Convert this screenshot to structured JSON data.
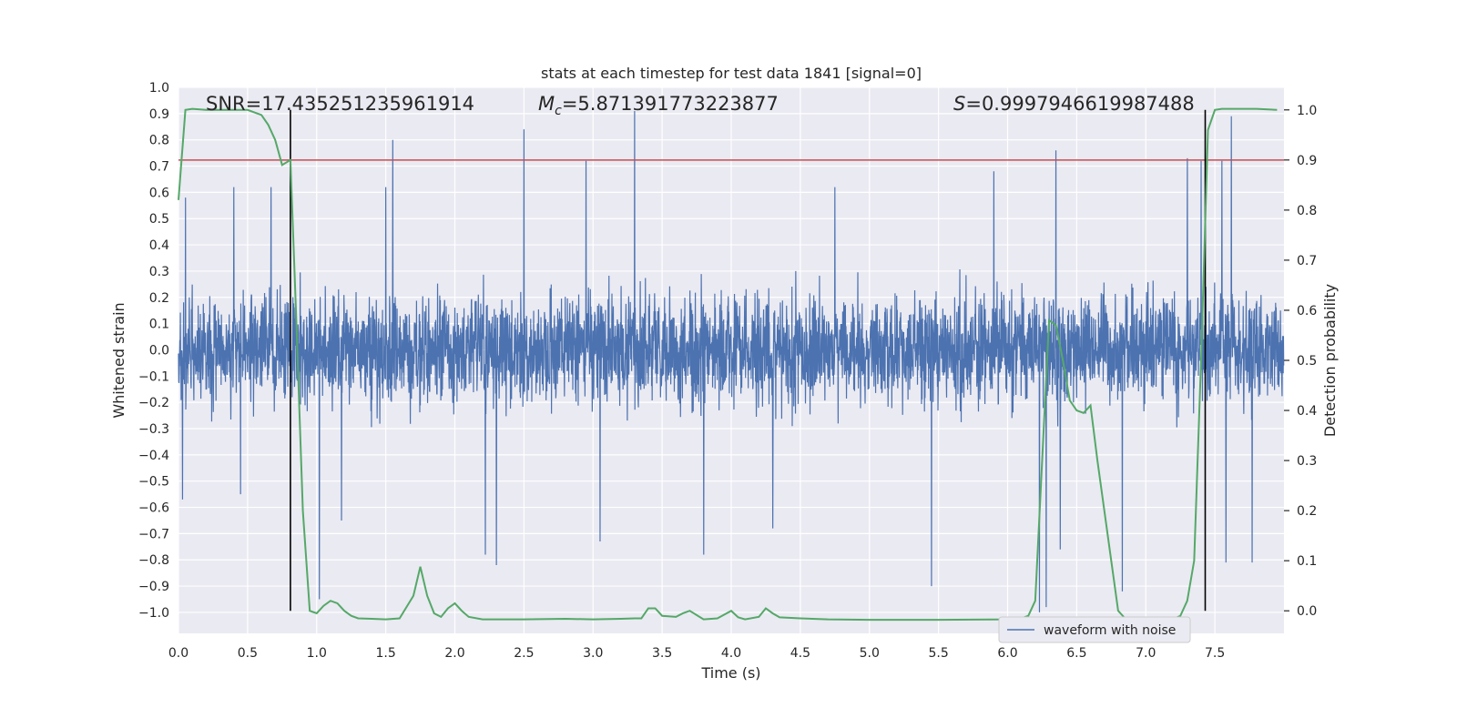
{
  "chart_data": {
    "type": "line",
    "title": "stats at each timestep for test data 1841 [signal=0]",
    "xlabel": "Time (s)",
    "ylabel": "Whitened strain",
    "y2label": "Detection probability",
    "xlim": [
      0.0,
      8.0
    ],
    "ylim": [
      -1.08,
      1.0
    ],
    "y2lim": [
      -0.045,
      1.045
    ],
    "xticks": [
      "0.0",
      "0.5",
      "1.0",
      "1.5",
      "2.0",
      "2.5",
      "3.0",
      "3.5",
      "4.0",
      "4.5",
      "5.0",
      "5.5",
      "6.0",
      "6.5",
      "7.0",
      "7.5"
    ],
    "yticks": [
      "1.0",
      "0.9",
      "0.8",
      "0.7",
      "0.6",
      "0.5",
      "0.4",
      "0.3",
      "0.2",
      "0.1",
      "0.0",
      "−0.1",
      "−0.2",
      "−0.3",
      "−0.4",
      "−0.5",
      "−0.6",
      "−0.7",
      "−0.8",
      "−0.9",
      "−1.0"
    ],
    "y2ticks": [
      "1.0",
      "0.9",
      "0.8",
      "0.7",
      "0.6",
      "0.5",
      "0.4",
      "0.3",
      "0.2",
      "0.1",
      "0.0"
    ],
    "annotations": {
      "snr": "SNR=17.435251235961914",
      "mc_symbol": "M",
      "mc_sub": "c",
      "mc_value": "=5.871391773223877",
      "s_symbol": "S",
      "s_value": "=0.9997946619987488"
    },
    "threshold": 0.9,
    "vlines": [
      0.81,
      7.43
    ],
    "legend": {
      "label": "waveform with noise",
      "position": "lower-right"
    },
    "series": [
      {
        "name": "waveform with noise",
        "color": "#4c72b0",
        "sample_rate": 512,
        "duration": 8.0,
        "typical_envelope": [
          -0.38,
          0.4
        ],
        "peaks": [
          [
            0.05,
            0.58
          ],
          [
            0.4,
            0.62
          ],
          [
            0.67,
            0.62
          ],
          [
            1.5,
            0.62
          ],
          [
            1.55,
            0.8
          ],
          [
            2.5,
            0.84
          ],
          [
            2.95,
            0.72
          ],
          [
            3.3,
            0.91
          ],
          [
            4.75,
            0.62
          ],
          [
            5.9,
            0.68
          ],
          [
            6.35,
            0.76
          ],
          [
            7.3,
            0.73
          ],
          [
            7.4,
            0.72
          ],
          [
            7.55,
            0.72
          ],
          [
            7.62,
            0.89
          ]
        ],
        "troughs": [
          [
            0.03,
            -0.57
          ],
          [
            0.45,
            -0.55
          ],
          [
            1.02,
            -0.95
          ],
          [
            1.18,
            -0.65
          ],
          [
            2.22,
            -0.78
          ],
          [
            2.3,
            -0.82
          ],
          [
            3.05,
            -0.73
          ],
          [
            3.8,
            -0.78
          ],
          [
            4.3,
            -0.68
          ],
          [
            5.45,
            -0.9
          ],
          [
            6.23,
            -1.0
          ],
          [
            6.28,
            -0.98
          ],
          [
            6.38,
            -0.76
          ],
          [
            6.83,
            -0.92
          ],
          [
            7.58,
            -0.81
          ],
          [
            7.77,
            -0.81
          ]
        ]
      },
      {
        "name": "Detection probability",
        "color": "#55a868",
        "axis": "right",
        "x": [
          0.0,
          0.05,
          0.1,
          0.2,
          0.3,
          0.4,
          0.5,
          0.6,
          0.65,
          0.7,
          0.75,
          0.81,
          0.85,
          0.9,
          0.95,
          1.0,
          1.05,
          1.1,
          1.15,
          1.2,
          1.25,
          1.3,
          1.4,
          1.5,
          1.6,
          1.7,
          1.75,
          1.8,
          1.85,
          1.9,
          1.95,
          2.0,
          2.05,
          2.1,
          2.2,
          2.5,
          2.8,
          3.0,
          3.2,
          3.3,
          3.35,
          3.4,
          3.45,
          3.5,
          3.6,
          3.65,
          3.7,
          3.8,
          3.9,
          4.0,
          4.05,
          4.1,
          4.2,
          4.25,
          4.3,
          4.35,
          4.5,
          4.7,
          5.0,
          5.5,
          6.0,
          6.1,
          6.15,
          6.2,
          6.25,
          6.3,
          6.35,
          6.4,
          6.45,
          6.5,
          6.55,
          6.6,
          6.65,
          6.7,
          6.75,
          6.8,
          6.85,
          6.9,
          7.0,
          7.1,
          7.2,
          7.25,
          7.3,
          7.35,
          7.4,
          7.45,
          7.5,
          7.55,
          7.6,
          7.7,
          7.8,
          7.95
        ],
        "values": [
          0.82,
          1.0,
          1.002,
          1.0,
          1.0,
          1.0,
          1.0,
          0.99,
          0.97,
          0.94,
          0.89,
          0.9,
          0.6,
          0.2,
          0.0,
          -0.005,
          0.01,
          0.02,
          0.015,
          0.0,
          -0.01,
          -0.015,
          -0.016,
          -0.017,
          -0.015,
          0.03,
          0.088,
          0.03,
          -0.005,
          -0.012,
          0.005,
          0.015,
          0.0,
          -0.012,
          -0.017,
          -0.017,
          -0.016,
          -0.017,
          -0.016,
          -0.015,
          -0.015,
          0.005,
          0.005,
          -0.01,
          -0.012,
          -0.005,
          0.0,
          -0.017,
          -0.015,
          0.0,
          -0.013,
          -0.017,
          -0.012,
          0.005,
          -0.005,
          -0.013,
          -0.015,
          -0.017,
          -0.018,
          -0.018,
          -0.017,
          -0.015,
          -0.01,
          0.02,
          0.3,
          0.58,
          0.57,
          0.5,
          0.42,
          0.4,
          0.395,
          0.41,
          0.3,
          0.2,
          0.1,
          0.0,
          -0.015,
          -0.017,
          -0.018,
          -0.017,
          -0.016,
          -0.01,
          0.02,
          0.1,
          0.5,
          0.96,
          1.0,
          1.002,
          1.002,
          1.002,
          1.002,
          1.0
        ]
      },
      {
        "name": "threshold",
        "color": "#c44e52",
        "axis": "right",
        "value": 0.9
      }
    ]
  }
}
